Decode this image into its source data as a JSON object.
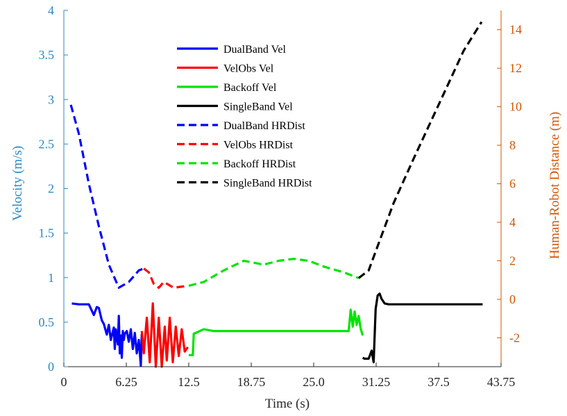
{
  "chart_data": {
    "type": "line",
    "xlabel": "Time (s)",
    "ylabel_left": "Velocity (m/s)",
    "ylabel_right": "Human-Robot Distance (m)",
    "xlim": [
      0,
      43.75
    ],
    "ylim_left": [
      0,
      4
    ],
    "ylim_right": [
      -3.5,
      15
    ],
    "x_ticks": [
      0,
      6.25,
      12.5,
      18.75,
      25.0,
      31.25,
      37.5,
      43.75
    ],
    "x_tick_labels": [
      "0",
      "6.25",
      "12.5",
      "18.75",
      "25.0",
      "31.25",
      "37.5",
      "43.75"
    ],
    "y_left_ticks": [
      0,
      0.5,
      1,
      1.5,
      2,
      2.5,
      3,
      3.5,
      4
    ],
    "y_left_tick_labels": [
      "0",
      "0.5",
      "1",
      "1.5",
      "2",
      "2.5",
      "3",
      "3.5",
      "4"
    ],
    "y_right_ticks": [
      -2,
      0,
      2,
      4,
      6,
      8,
      10,
      12,
      14
    ],
    "y_right_tick_labels": [
      "-2",
      "0",
      "2",
      "4",
      "6",
      "8",
      "10",
      "12",
      "14"
    ],
    "colors": {
      "left_axis": "#2e86c1",
      "right_axis": "#d35400",
      "dualband": "#0000ff",
      "velobs": "#ff0000",
      "backoff": "#00e400",
      "singleband": "#000000"
    },
    "legend_position": "top-center",
    "series": [
      {
        "name": "DualBand Vel",
        "axis": "left",
        "style": "solid",
        "color": "#0000ff",
        "x": [
          0.8,
          1.5,
          2.5,
          3.0,
          3.3,
          3.5,
          3.8,
          4.0,
          4.3,
          4.5,
          4.7,
          5.0,
          5.1,
          5.2,
          5.4,
          5.5,
          5.6,
          5.7,
          5.8,
          5.9,
          6.0,
          6.1,
          6.3,
          6.5,
          6.7,
          6.9,
          7.1,
          7.3,
          7.5,
          7.7,
          7.8
        ],
        "y": [
          0.71,
          0.7,
          0.7,
          0.58,
          0.67,
          0.66,
          0.52,
          0.48,
          0.36,
          0.47,
          0.3,
          0.44,
          0.2,
          0.42,
          0.25,
          0.57,
          0.15,
          0.35,
          0.1,
          0.4,
          0.3,
          0.37,
          0.4,
          0.28,
          0.42,
          0.2,
          0.38,
          0.15,
          0.3,
          0.01,
          0.37
        ]
      },
      {
        "name": "VelObs Vel",
        "axis": "left",
        "style": "solid",
        "color": "#ff0000",
        "x": [
          7.8,
          8.0,
          8.3,
          8.6,
          8.9,
          9.2,
          9.5,
          9.8,
          10.1,
          10.3,
          10.6,
          10.9,
          11.2,
          11.5,
          11.8,
          12.1,
          12.4
        ],
        "y": [
          0.4,
          0.15,
          0.55,
          0.05,
          0.71,
          0.0,
          0.55,
          0.0,
          0.45,
          0.07,
          0.55,
          0.05,
          0.45,
          0.12,
          0.42,
          0.17,
          0.22
        ]
      },
      {
        "name": "Backoff Vel",
        "axis": "left",
        "style": "solid",
        "color": "#00e400",
        "x": [
          12.5,
          12.9,
          13.0,
          13.4,
          14.0,
          15.0,
          18.0,
          21.0,
          24.0,
          27.0,
          28.5,
          28.7,
          28.9,
          29.1,
          29.3,
          29.5,
          29.7,
          29.9
        ],
        "y": [
          0.13,
          0.13,
          0.37,
          0.39,
          0.42,
          0.4,
          0.4,
          0.4,
          0.4,
          0.4,
          0.4,
          0.64,
          0.45,
          0.62,
          0.47,
          0.57,
          0.43,
          0.35
        ]
      },
      {
        "name": "SingleBand Vel",
        "axis": "left",
        "style": "solid",
        "color": "#000000",
        "x": [
          29.9,
          30.1,
          30.5,
          30.8,
          31.0,
          31.2,
          31.4,
          31.6,
          31.8,
          32.1,
          32.5,
          33.0,
          35.0,
          37.5,
          40.0,
          41.9
        ],
        "y": [
          0.1,
          0.09,
          0.09,
          0.18,
          0.05,
          0.65,
          0.8,
          0.82,
          0.76,
          0.71,
          0.7,
          0.7,
          0.7,
          0.7,
          0.7,
          0.7
        ]
      },
      {
        "name": "DualBand HRDist",
        "axis": "right",
        "style": "dashed",
        "color": "#0000ff",
        "x": [
          0.7,
          1.5,
          2.5,
          3.5,
          4.5,
          5.5,
          6.5,
          7.5,
          8.0
        ],
        "y": [
          10.1,
          8.6,
          6.0,
          3.8,
          1.8,
          0.6,
          0.9,
          1.5,
          1.6
        ]
      },
      {
        "name": "VelObs HRDist",
        "axis": "right",
        "style": "dashed",
        "color": "#ff0000",
        "x": [
          8.0,
          8.5,
          9.0,
          9.5,
          10.0,
          11.0,
          12.4
        ],
        "y": [
          1.6,
          1.4,
          0.8,
          0.6,
          0.9,
          0.6,
          0.7
        ]
      },
      {
        "name": "Backoff HRDist",
        "axis": "right",
        "style": "dashed",
        "color": "#00e400",
        "x": [
          12.5,
          14.0,
          16.0,
          18.0,
          20.0,
          21.5,
          23.0,
          24.5,
          26.0,
          28.0,
          29.5
        ],
        "y": [
          0.7,
          0.9,
          1.5,
          2.0,
          1.8,
          2.0,
          2.1,
          2.0,
          1.7,
          1.4,
          1.1
        ]
      },
      {
        "name": "SingleBand HRDist",
        "axis": "right",
        "style": "dashed",
        "color": "#000000",
        "x": [
          29.5,
          30.5,
          31.5,
          33.0,
          35.0,
          37.5,
          40.0,
          41.8
        ],
        "y": [
          1.1,
          1.5,
          2.9,
          5.0,
          7.3,
          10.1,
          12.9,
          14.4
        ]
      }
    ]
  }
}
